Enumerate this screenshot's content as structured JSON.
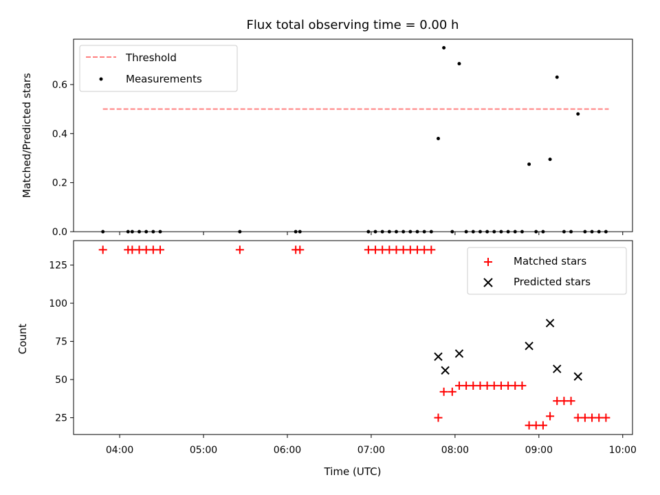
{
  "title": "Flux total observing time = 0.00 h",
  "colors": {
    "threshold": "#ff7f7f",
    "measurement": "#000000",
    "matched": "#ff0000",
    "predicted": "#000000"
  },
  "chart_data": [
    {
      "type": "scatter",
      "panel": "top",
      "ylabel": "Matched/Predicted stars",
      "xlabel": "",
      "xlim": [
        "03:27",
        "10:07"
      ],
      "ylim": [
        0,
        0.785
      ],
      "y_ticks": [
        0.0,
        0.2,
        0.4,
        0.6
      ],
      "y_tick_labels": [
        "0.0",
        "0.2",
        "0.4",
        "0.6"
      ],
      "grid": false,
      "legend": {
        "placement": "top-left",
        "entries": [
          "Threshold",
          "Measurements"
        ]
      },
      "threshold": {
        "name": "Threshold",
        "y": 0.5,
        "x_start": "03:48",
        "x_end": "09:50",
        "style": "dashed"
      },
      "series": [
        {
          "name": "Measurements",
          "marker": "dot",
          "x": [
            "03:48",
            "04:06",
            "04:09",
            "04:14",
            "04:19",
            "04:24",
            "04:29",
            "05:26",
            "06:06",
            "06:09",
            "06:58",
            "07:03",
            "07:08",
            "07:13",
            "07:18",
            "07:23",
            "07:28",
            "07:33",
            "07:38",
            "07:43",
            "07:48",
            "07:52",
            "07:58",
            "08:03",
            "08:08",
            "08:13",
            "08:18",
            "08:23",
            "08:28",
            "08:33",
            "08:38",
            "08:43",
            "08:48",
            "08:53",
            "08:58",
            "09:03",
            "09:08",
            "09:13",
            "09:18",
            "09:23",
            "09:28",
            "09:33",
            "09:38",
            "09:43",
            "09:48"
          ],
          "y": [
            0,
            0,
            0,
            0,
            0,
            0,
            0,
            0,
            0,
            0,
            0,
            0,
            0,
            0,
            0,
            0,
            0,
            0,
            0,
            0,
            0.38,
            0.75,
            0,
            0.685,
            0,
            0,
            0,
            0,
            0,
            0,
            0,
            0,
            0,
            0.275,
            0,
            0,
            0.295,
            0.63,
            0,
            0,
            0.48,
            0,
            0,
            0,
            0
          ]
        }
      ]
    },
    {
      "type": "scatter",
      "panel": "bottom",
      "ylabel": "Count",
      "xlabel": "Time (UTC)",
      "xlim": [
        "03:27",
        "10:07"
      ],
      "x_ticks": [
        "04:00",
        "05:00",
        "06:00",
        "07:00",
        "08:00",
        "09:00",
        "10:00"
      ],
      "x_tick_labels": [
        "04:00",
        "05:00",
        "06:00",
        "07:00",
        "08:00",
        "09:00",
        "10:00"
      ],
      "ylim": [
        14,
        141
      ],
      "y_ticks": [
        25,
        50,
        75,
        100,
        125
      ],
      "y_tick_labels": [
        "25",
        "50",
        "75",
        "100",
        "125"
      ],
      "grid": false,
      "legend": {
        "placement": "top-right",
        "entries": [
          "Matched stars",
          "Predicted stars"
        ]
      },
      "series": [
        {
          "name": "Matched stars",
          "marker": "plus",
          "x": [
            "03:48",
            "04:06",
            "04:09",
            "04:14",
            "04:19",
            "04:24",
            "04:29",
            "05:26",
            "06:06",
            "06:09",
            "06:58",
            "07:03",
            "07:08",
            "07:13",
            "07:18",
            "07:23",
            "07:28",
            "07:33",
            "07:38",
            "07:43",
            "07:48",
            "07:52",
            "07:58",
            "08:03",
            "08:08",
            "08:13",
            "08:18",
            "08:23",
            "08:28",
            "08:33",
            "08:38",
            "08:43",
            "08:48",
            "08:53",
            "08:58",
            "09:03",
            "09:08",
            "09:13",
            "09:18",
            "09:23",
            "09:28",
            "09:33",
            "09:38",
            "09:43",
            "09:48"
          ],
          "y": [
            135,
            135,
            135,
            135,
            135,
            135,
            135,
            135,
            135,
            135,
            135,
            135,
            135,
            135,
            135,
            135,
            135,
            135,
            135,
            135,
            25,
            42,
            42,
            46,
            46,
            46,
            46,
            46,
            46,
            46,
            46,
            46,
            46,
            20,
            20,
            20,
            26,
            36,
            36,
            36,
            25,
            25,
            25,
            25,
            25
          ]
        },
        {
          "name": "Predicted stars",
          "marker": "x",
          "x": [
            "07:48",
            "07:53",
            "08:03",
            "08:53",
            "09:08",
            "09:13",
            "09:28"
          ],
          "y": [
            65,
            56,
            67,
            72,
            87,
            57,
            52
          ]
        }
      ]
    }
  ]
}
